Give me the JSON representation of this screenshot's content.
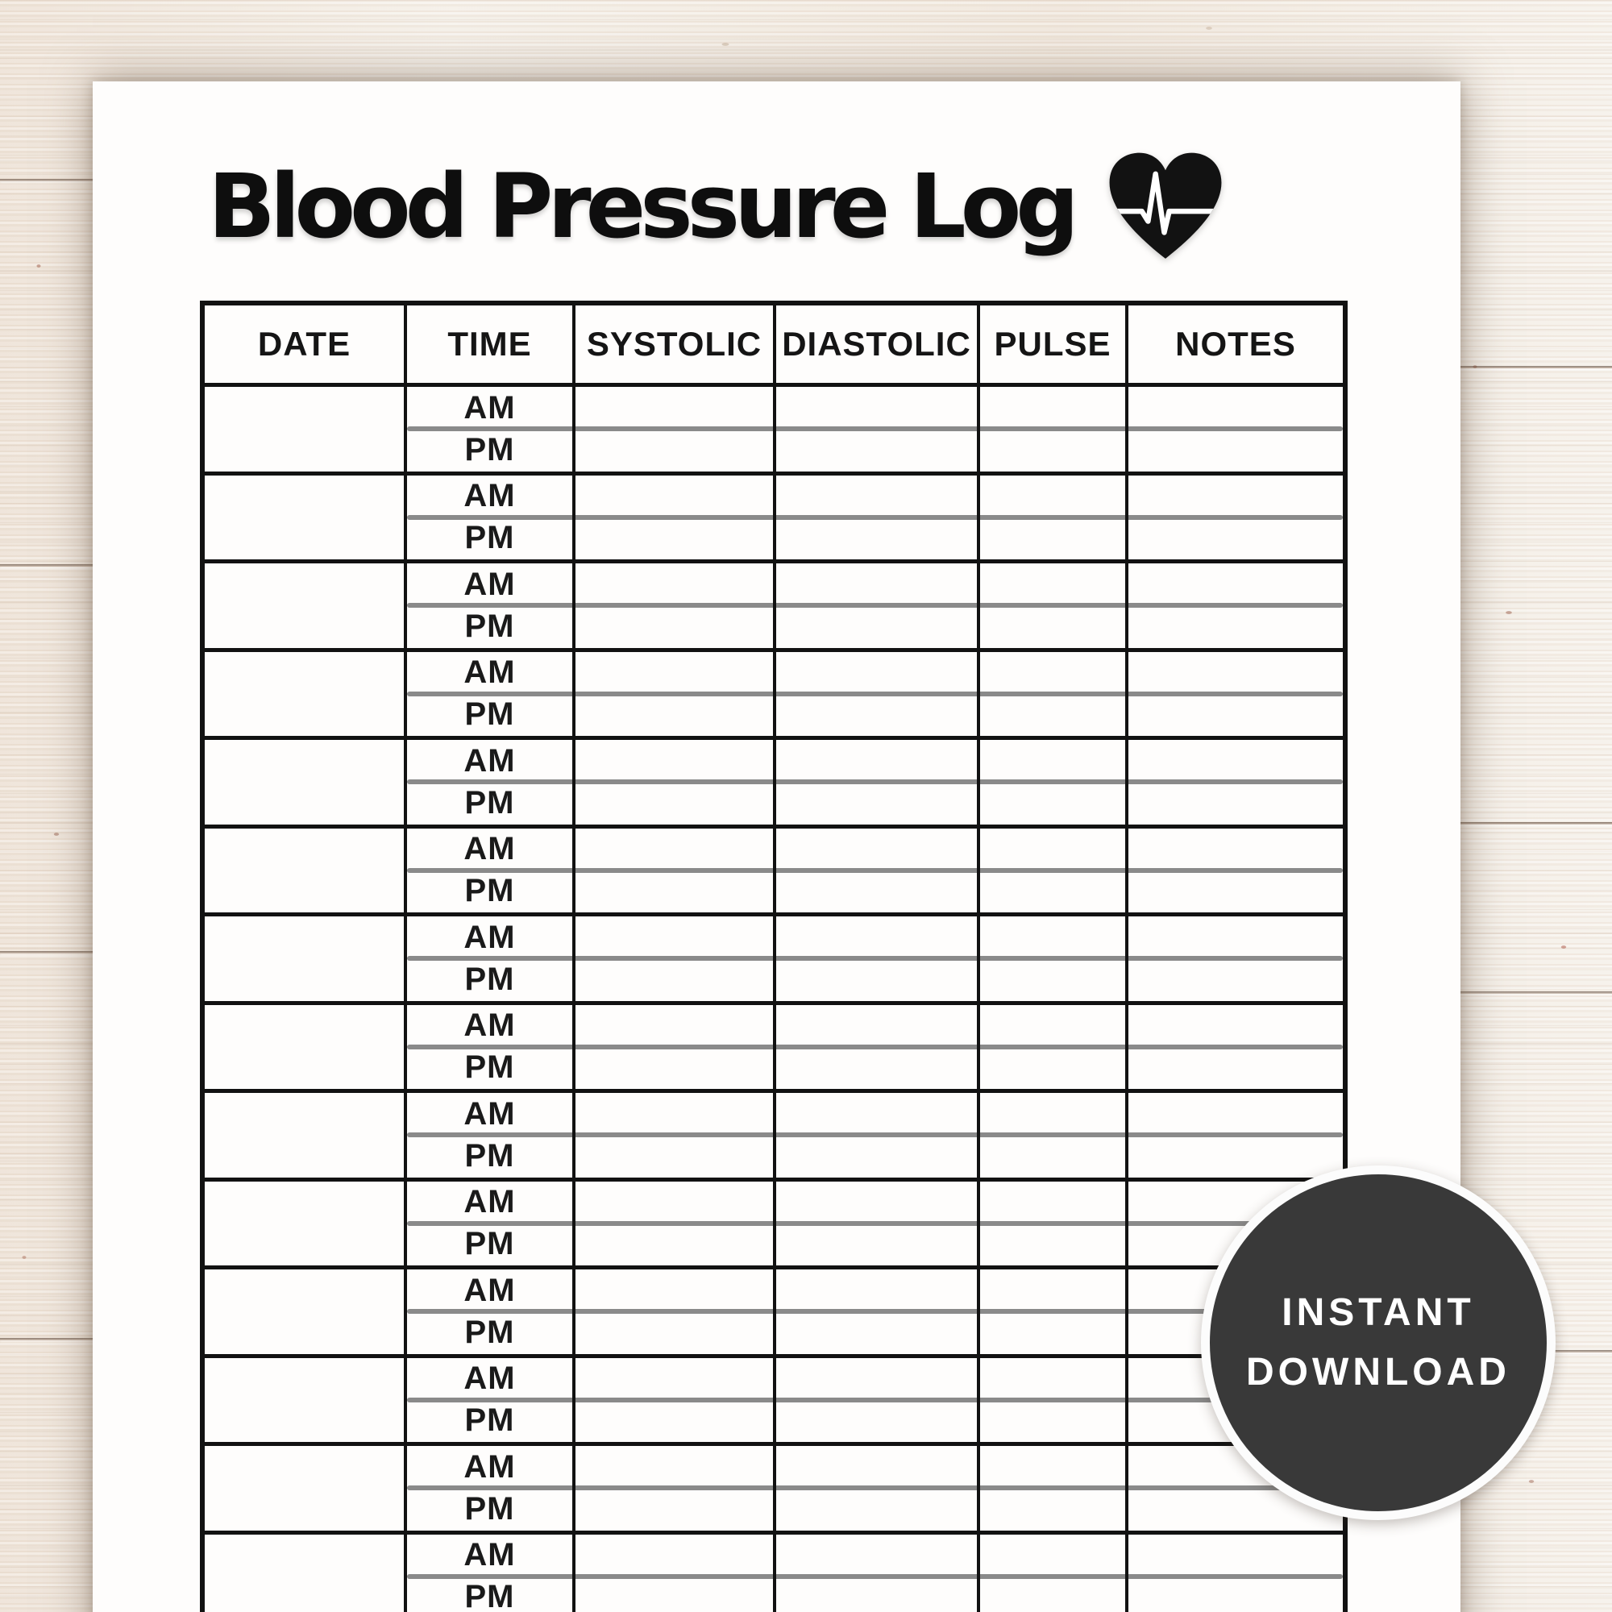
{
  "page": {
    "title": "Blood Pressure Log"
  },
  "icons": {
    "title_icon": "heart-ekg-icon"
  },
  "table": {
    "headers": [
      "DATE",
      "TIME",
      "SYSTOLIC",
      "DIASTOLIC",
      "PULSE",
      "NOTES"
    ],
    "time_slots": [
      "AM",
      "PM"
    ],
    "day_rows": 14
  },
  "badge": {
    "line1": "INSTANT",
    "line2": "DOWNLOAD"
  },
  "colors": {
    "ink": "#121212",
    "am_pm_divider": "#8a8a8a",
    "badge_background": "#393939",
    "badge_text": "#ffffff",
    "page_background": "#fefdfc",
    "wood_base": "#f5f0e9"
  }
}
